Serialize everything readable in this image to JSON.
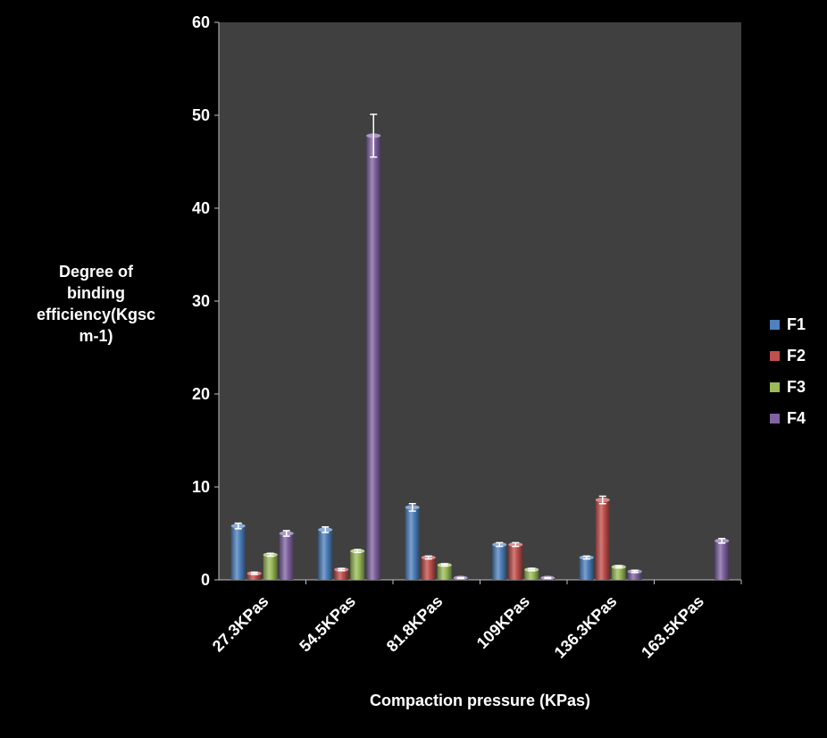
{
  "chart_data": {
    "type": "bar",
    "title": "",
    "xlabel": "Compaction pressure (KPas)",
    "ylabel": "Degree of binding efficiency(Kgsc m-1)",
    "ylabel_lines": [
      "Degree of",
      "binding",
      "efficiency(Kgsc",
      "m-1)"
    ],
    "ylim": [
      0,
      60
    ],
    "yticks": [
      0,
      10,
      20,
      30,
      40,
      50,
      60
    ],
    "categories": [
      "27.3KPas",
      "54.5KPas",
      "81.8KPas",
      "109KPas",
      "136.3KPas",
      "163.5KPas"
    ],
    "legend_position": "right",
    "grid": false,
    "plot_background": "#404040",
    "series": [
      {
        "name": "F1",
        "color": "#4F81BD",
        "values": [
          5.8,
          5.4,
          7.8,
          3.8,
          2.4,
          0
        ],
        "errors": [
          0.3,
          0.3,
          0.4,
          0.2,
          0.15,
          0
        ]
      },
      {
        "name": "F2",
        "color": "#C0504D",
        "values": [
          0.7,
          1.1,
          2.4,
          3.8,
          8.6,
          0
        ],
        "errors": [
          0.1,
          0.1,
          0.15,
          0.2,
          0.4,
          0
        ]
      },
      {
        "name": "F3",
        "color": "#9BBB59",
        "values": [
          2.7,
          3.1,
          1.6,
          1.1,
          1.4,
          0
        ],
        "errors": [
          0.15,
          0.15,
          0.1,
          0.1,
          0.1,
          0
        ]
      },
      {
        "name": "F4",
        "color": "#8064A2",
        "values": [
          5.0,
          47.8,
          0.2,
          0.2,
          0.9,
          4.2
        ],
        "errors": [
          0.3,
          2.3,
          0.05,
          0.05,
          0.1,
          0.25
        ]
      }
    ]
  }
}
